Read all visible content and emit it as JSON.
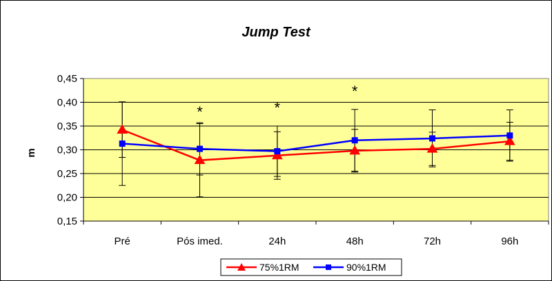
{
  "chart_data": {
    "type": "line",
    "title": "Jump Test",
    "xlabel": "",
    "ylabel": "m",
    "categories": [
      "Pré",
      "Pós imed.",
      "24h",
      "48h",
      "72h",
      "96h"
    ],
    "ylim": [
      0.15,
      0.45
    ],
    "yticks": [
      "0,15",
      "0,20",
      "0,25",
      "0,30",
      "0,35",
      "0,40",
      "0,45"
    ],
    "grid": true,
    "plot_background": "#FFFF99",
    "legend_position": "bottom",
    "series": [
      {
        "name": "75%1RM",
        "color": "#FF0000",
        "marker": "triangle",
        "values": [
          0.342,
          0.278,
          0.288,
          0.298,
          0.302,
          0.318
        ],
        "error": [
          0.058,
          0.077,
          0.05,
          0.045,
          0.035,
          0.04
        ]
      },
      {
        "name": "90%1RM",
        "color": "#0000FF",
        "marker": "square",
        "values": [
          0.313,
          0.302,
          0.297,
          0.32,
          0.324,
          0.33
        ],
        "error": [
          0.088,
          0.055,
          0.053,
          0.065,
          0.06,
          0.054
        ]
      }
    ],
    "annotations": [
      {
        "category": "Pós imed.",
        "text": "*"
      },
      {
        "category": "24h",
        "text": "*"
      },
      {
        "category": "48h",
        "text": "*"
      }
    ]
  }
}
